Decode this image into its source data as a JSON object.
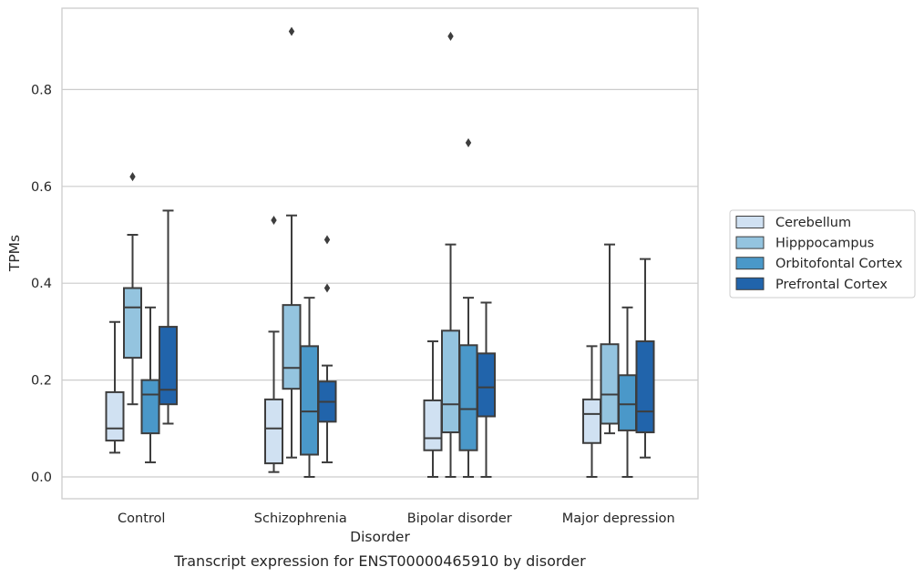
{
  "chart_data": {
    "type": "box",
    "xlabel": "Disorder",
    "ylabel": "TPMs",
    "caption": "Transcript expression for ENST00000465910 by disorder",
    "ylim": [
      -0.045,
      0.965
    ],
    "yticks": [
      "0.0",
      "0.2",
      "0.4",
      "0.6",
      "0.8"
    ],
    "grid": "horizontal",
    "legend_position": "right",
    "categories": [
      "Control",
      "Schizophrenia",
      "Bipolar disorder",
      "Major depression"
    ],
    "series": [
      {
        "name": "Cerebellum",
        "color": "#d0e1f2",
        "boxes": [
          {
            "whisker_low": 0.05,
            "q1": 0.075,
            "median": 0.1,
            "q3": 0.175,
            "whisker_high": 0.32,
            "outliers": []
          },
          {
            "whisker_low": 0.01,
            "q1": 0.028,
            "median": 0.1,
            "q3": 0.16,
            "whisker_high": 0.3,
            "outliers": [
              0.53
            ]
          },
          {
            "whisker_low": 0.0,
            "q1": 0.055,
            "median": 0.08,
            "q3": 0.158,
            "whisker_high": 0.28,
            "outliers": []
          },
          {
            "whisker_low": 0.0,
            "q1": 0.07,
            "median": 0.13,
            "q3": 0.16,
            "whisker_high": 0.27,
            "outliers": []
          }
        ]
      },
      {
        "name": "Hipppocampus",
        "color": "#94c4df",
        "boxes": [
          {
            "whisker_low": 0.15,
            "q1": 0.246,
            "median": 0.35,
            "q3": 0.39,
            "whisker_high": 0.5,
            "outliers": [
              0.62
            ]
          },
          {
            "whisker_low": 0.04,
            "q1": 0.182,
            "median": 0.225,
            "q3": 0.355,
            "whisker_high": 0.54,
            "outliers": [
              0.92
            ]
          },
          {
            "whisker_low": 0.0,
            "q1": 0.092,
            "median": 0.15,
            "q3": 0.302,
            "whisker_high": 0.48,
            "outliers": [
              0.91
            ]
          },
          {
            "whisker_low": 0.09,
            "q1": 0.11,
            "median": 0.17,
            "q3": 0.274,
            "whisker_high": 0.48,
            "outliers": []
          }
        ]
      },
      {
        "name": "Orbitofontal Cortex",
        "color": "#4a98c9",
        "boxes": [
          {
            "whisker_low": 0.03,
            "q1": 0.09,
            "median": 0.17,
            "q3": 0.2,
            "whisker_high": 0.35,
            "outliers": []
          },
          {
            "whisker_low": 0.0,
            "q1": 0.046,
            "median": 0.135,
            "q3": 0.27,
            "whisker_high": 0.37,
            "outliers": []
          },
          {
            "whisker_low": 0.0,
            "q1": 0.055,
            "median": 0.14,
            "q3": 0.272,
            "whisker_high": 0.37,
            "outliers": [
              0.69
            ]
          },
          {
            "whisker_low": 0.0,
            "q1": 0.096,
            "median": 0.15,
            "q3": 0.21,
            "whisker_high": 0.35,
            "outliers": []
          }
        ]
      },
      {
        "name": "Prefrontal Cortex",
        "color": "#2164ab",
        "boxes": [
          {
            "whisker_low": 0.11,
            "q1": 0.15,
            "median": 0.18,
            "q3": 0.31,
            "whisker_high": 0.55,
            "outliers": []
          },
          {
            "whisker_low": 0.03,
            "q1": 0.114,
            "median": 0.155,
            "q3": 0.197,
            "whisker_high": 0.23,
            "outliers": [
              0.39,
              0.49
            ]
          },
          {
            "whisker_low": 0.0,
            "q1": 0.125,
            "median": 0.185,
            "q3": 0.255,
            "whisker_high": 0.36,
            "outliers": []
          },
          {
            "whisker_low": 0.04,
            "q1": 0.092,
            "median": 0.135,
            "q3": 0.28,
            "whisker_high": 0.45,
            "outliers": []
          }
        ]
      }
    ]
  }
}
